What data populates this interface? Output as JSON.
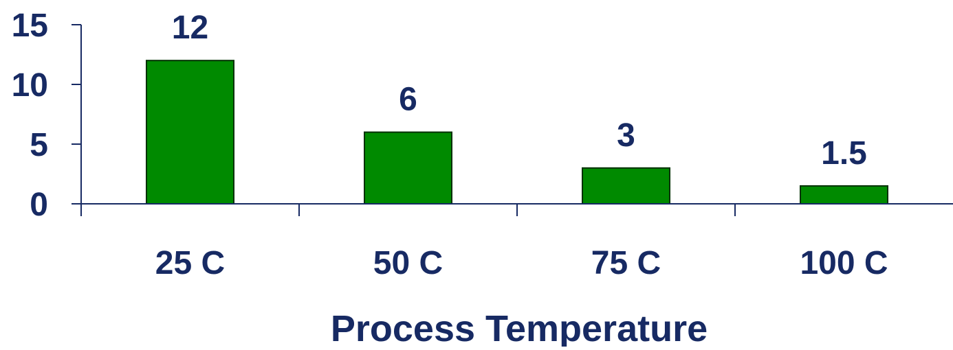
{
  "chart_data": {
    "type": "bar",
    "categories": [
      "25 C",
      "50 C",
      "75 C",
      "100 C"
    ],
    "values": [
      12,
      6,
      3,
      1.5
    ],
    "data_labels": [
      "12",
      "6",
      "3",
      "1.5"
    ],
    "title": "",
    "xlabel": "Process Temperature",
    "ylabel": "",
    "ylim": [
      0,
      15
    ],
    "yticks": [
      0,
      5,
      10,
      15
    ],
    "ytick_labels": [
      "0",
      "5",
      "10",
      "15"
    ],
    "grid": false,
    "legend": "none",
    "colors": {
      "bar_fill": "#008a00",
      "bar_stroke": "#003000",
      "text": "#172a63",
      "axis": "#172a63"
    }
  }
}
